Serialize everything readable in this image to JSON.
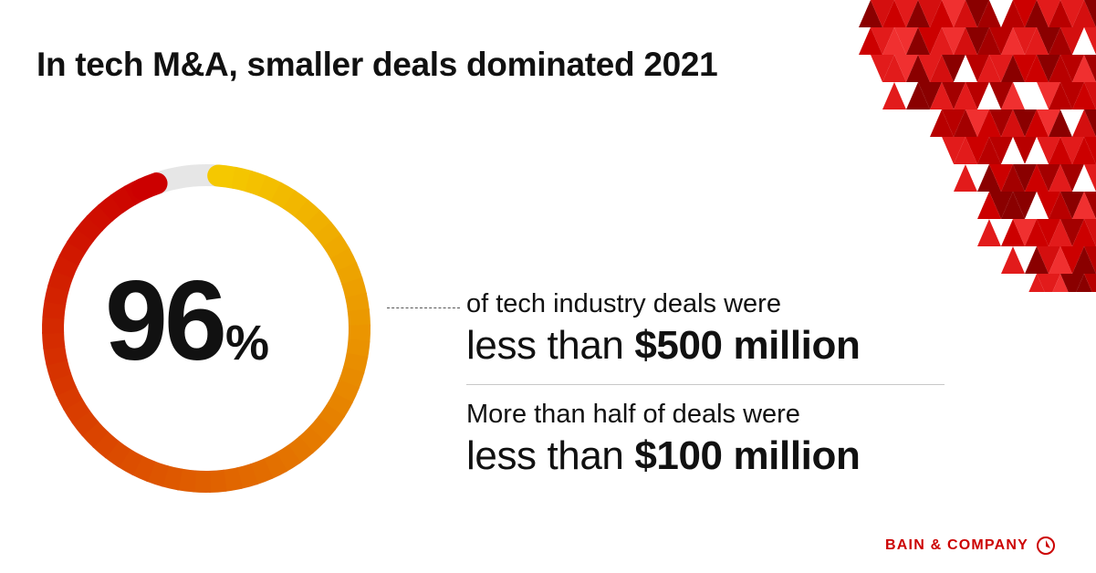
{
  "title": "In tech M&A, smaller deals dominated 2021",
  "stat": {
    "value": "96",
    "unit": "%"
  },
  "fact1": {
    "line1": "of tech industry deals were",
    "prefix": "less than ",
    "amount": "$500 million"
  },
  "fact2": {
    "line1": "More than half of deals were",
    "prefix": "less than ",
    "amount": "$100 million"
  },
  "brand": {
    "name": "BAIN & COMPANY",
    "logo_icon": "bain-compass-icon"
  },
  "colors": {
    "accent_red": "#cc0000",
    "ring_gradient_start": "#f5c800",
    "ring_gradient_end": "#cc0000",
    "ring_track": "#e6e6e6"
  },
  "chart_data": {
    "type": "pie",
    "values": [
      96,
      4
    ],
    "title": "",
    "xlabel": "",
    "ylabel": ""
  }
}
